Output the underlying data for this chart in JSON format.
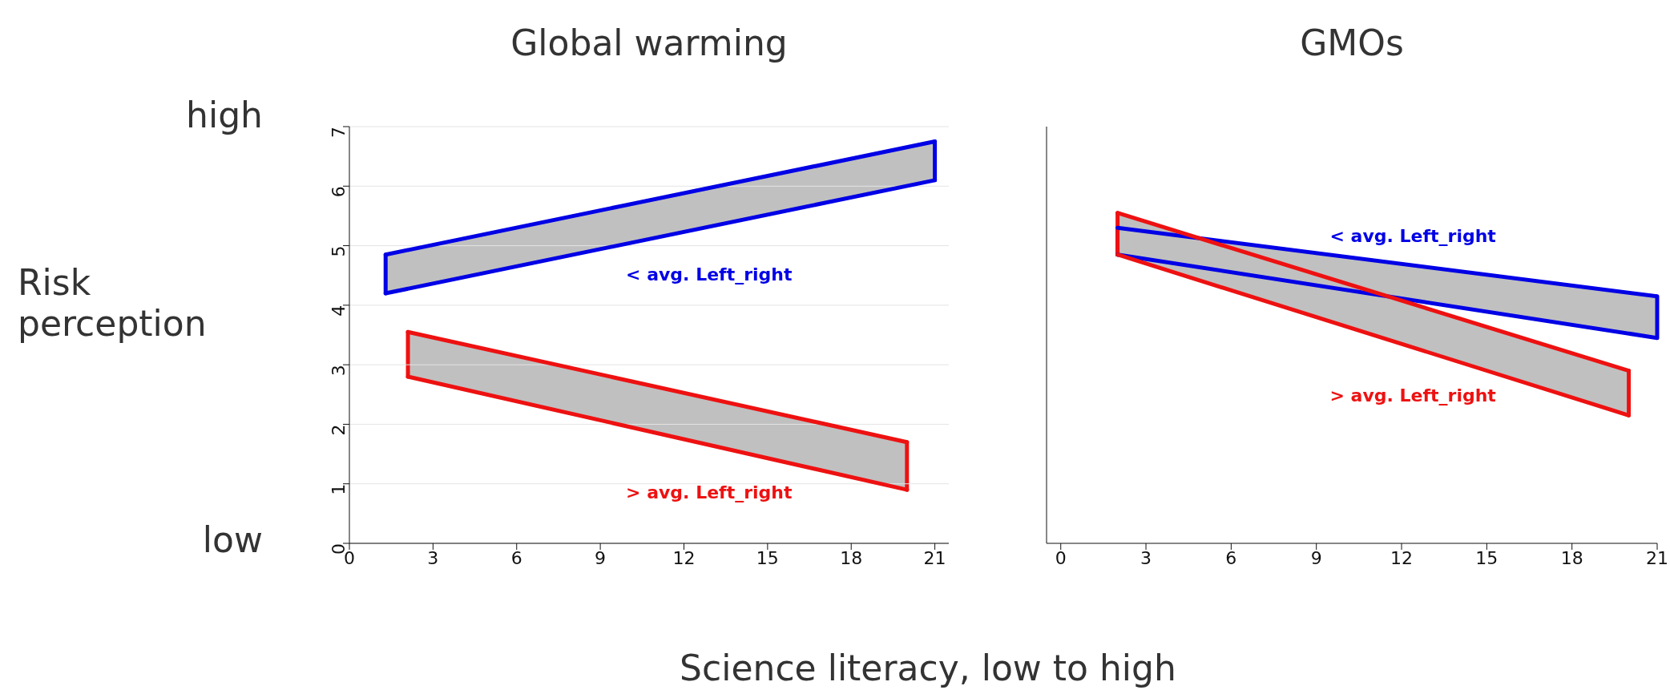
{
  "chart_data": [
    {
      "type": "line",
      "title": "Global warming",
      "ylabel": "Risk perception",
      "xlim": [
        0,
        21.5
      ],
      "xticks": [
        0,
        3,
        6,
        9,
        12,
        15,
        18,
        21
      ],
      "ylim": [
        0,
        7
      ],
      "yticks": [
        0,
        1,
        2,
        3,
        4,
        5,
        6,
        7
      ],
      "grid": "y",
      "series": [
        {
          "name": "< avg. Left_right",
          "color": "#0000e6",
          "x": [
            1.3,
            21
          ],
          "values": [
            4.85,
            6.75
          ]
        },
        {
          "color": "#0000e6",
          "x": [
            1.3,
            21
          ],
          "values": [
            4.2,
            6.1
          ]
        },
        {
          "name": "> avg. Left_right",
          "color": "#ee1111",
          "x": [
            2.1,
            20
          ],
          "values": [
            3.55,
            1.7
          ]
        },
        {
          "color": "#ee1111",
          "x": [
            2.1,
            20
          ],
          "values": [
            2.8,
            0.9
          ]
        }
      ],
      "annotations": [
        "high",
        "low"
      ]
    },
    {
      "type": "line",
      "title": "GMOs",
      "xlabel": "Science literacy, low to high",
      "xlim": [
        -0.5,
        21
      ],
      "xticks": [
        0,
        3,
        6,
        9,
        12,
        15,
        18,
        21
      ],
      "ylim": [
        0,
        7
      ],
      "yticks": [
        0,
        1,
        2,
        3,
        4,
        5,
        6,
        7
      ],
      "grid": "y",
      "tick_labels": "x",
      "series": [
        {
          "name": "< avg. Left_right",
          "color": "#0000e6",
          "x": [
            2,
            21
          ],
          "values": [
            5.3,
            4.15
          ]
        },
        {
          "color": "#0000e6",
          "x": [
            2,
            21
          ],
          "values": [
            4.85,
            3.45
          ]
        },
        {
          "name": "> avg. Left_right",
          "color": "#ee1111",
          "x": [
            2,
            20
          ],
          "values": [
            5.55,
            2.9
          ]
        },
        {
          "color": "#ee1111",
          "x": [
            2,
            20
          ],
          "values": [
            4.85,
            2.15
          ]
        }
      ]
    }
  ]
}
